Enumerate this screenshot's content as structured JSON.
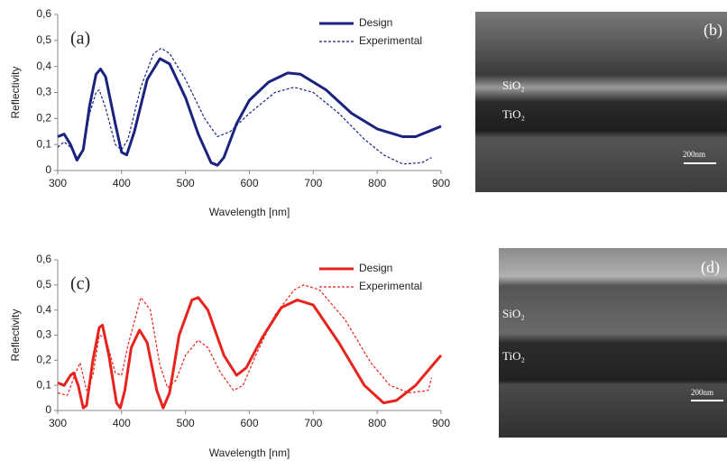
{
  "chart_data": [
    {
      "type": "line",
      "annotation": "(a)",
      "xlabel": "Wavelength [nm]",
      "ylabel": "Reflectivity",
      "xlim": [
        300,
        900
      ],
      "xticks": [
        300,
        400,
        500,
        600,
        700,
        800,
        900
      ],
      "ylim": [
        0,
        0.6
      ],
      "yticks": [
        0,
        {
          "value": 0.1,
          "label": "0,1"
        },
        {
          "value": 0.2,
          "label": "0,2"
        },
        {
          "value": 0.3,
          "label": "0,3"
        },
        {
          "value": 0.4,
          "label": "0,4"
        },
        {
          "value": 0.5,
          "label": "0,5"
        },
        {
          "value": 0.6,
          "label": "0,6"
        }
      ],
      "legend": "upper right",
      "series": [
        {
          "name": "Design",
          "color": "#1a237e",
          "dashed": false,
          "x": [
            300,
            310,
            320,
            330,
            340,
            350,
            360,
            367,
            375,
            390,
            400,
            408,
            420,
            440,
            460,
            475,
            500,
            520,
            540,
            550,
            560,
            580,
            600,
            630,
            660,
            680,
            720,
            760,
            800,
            840,
            860,
            880,
            900
          ],
          "values": [
            0.13,
            0.14,
            0.1,
            0.04,
            0.08,
            0.25,
            0.37,
            0.39,
            0.36,
            0.18,
            0.07,
            0.06,
            0.15,
            0.35,
            0.43,
            0.41,
            0.28,
            0.14,
            0.03,
            0.02,
            0.05,
            0.18,
            0.27,
            0.34,
            0.375,
            0.37,
            0.31,
            0.22,
            0.16,
            0.13,
            0.13,
            0.15,
            0.17
          ]
        },
        {
          "name": "Experimental",
          "color": "#1a237e",
          "dashed": true,
          "x": [
            300,
            310,
            320,
            330,
            340,
            350,
            360,
            365,
            375,
            390,
            400,
            410,
            430,
            450,
            462,
            475,
            500,
            530,
            550,
            570,
            600,
            640,
            670,
            700,
            740,
            780,
            810,
            840,
            870,
            885
          ],
          "values": [
            0.09,
            0.11,
            0.09,
            0.05,
            0.08,
            0.22,
            0.3,
            0.31,
            0.24,
            0.1,
            0.08,
            0.12,
            0.32,
            0.45,
            0.47,
            0.45,
            0.35,
            0.2,
            0.13,
            0.15,
            0.22,
            0.3,
            0.32,
            0.3,
            0.22,
            0.12,
            0.06,
            0.025,
            0.03,
            0.05
          ]
        }
      ]
    },
    {
      "type": "line",
      "annotation": "(c)",
      "xlabel": "Wavelength [nm]",
      "ylabel": "Reflectivity",
      "xlim": [
        300,
        900
      ],
      "xticks": [
        300,
        400,
        500,
        600,
        700,
        800,
        900
      ],
      "ylim": [
        0,
        0.6
      ],
      "yticks": [
        0,
        {
          "value": 0.1,
          "label": "0,1"
        },
        {
          "value": 0.2,
          "label": "0,2"
        },
        {
          "value": 0.3,
          "label": "0,3"
        },
        {
          "value": 0.4,
          "label": "0,4"
        },
        {
          "value": 0.5,
          "label": "0,5"
        },
        {
          "value": 0.6,
          "label": "0,6"
        }
      ],
      "legend": "upper right",
      "series": [
        {
          "name": "Design",
          "color": "#e8231d",
          "dashed": false,
          "x": [
            300,
            310,
            320,
            325,
            332,
            340,
            345,
            355,
            365,
            370,
            380,
            392,
            398,
            405,
            415,
            428,
            440,
            455,
            465,
            475,
            490,
            510,
            520,
            535,
            560,
            580,
            595,
            620,
            650,
            675,
            700,
            740,
            780,
            810,
            830,
            860,
            890,
            900
          ],
          "values": [
            0.11,
            0.1,
            0.14,
            0.15,
            0.1,
            0.01,
            0.02,
            0.2,
            0.33,
            0.34,
            0.22,
            0.03,
            0.01,
            0.08,
            0.25,
            0.32,
            0.27,
            0.08,
            0.01,
            0.07,
            0.3,
            0.44,
            0.45,
            0.4,
            0.22,
            0.14,
            0.17,
            0.29,
            0.41,
            0.44,
            0.42,
            0.27,
            0.1,
            0.03,
            0.04,
            0.1,
            0.19,
            0.22
          ]
        },
        {
          "name": "Experimental",
          "color": "#e8231d",
          "dashed": true,
          "x": [
            300,
            315,
            328,
            335,
            345,
            355,
            365,
            375,
            390,
            400,
            410,
            430,
            445,
            460,
            472,
            485,
            500,
            520,
            535,
            555,
            575,
            590,
            610,
            640,
            670,
            685,
            710,
            750,
            790,
            820,
            850,
            880,
            885
          ],
          "values": [
            0.07,
            0.06,
            0.15,
            0.19,
            0.08,
            0.14,
            0.3,
            0.29,
            0.15,
            0.14,
            0.26,
            0.45,
            0.4,
            0.18,
            0.09,
            0.12,
            0.22,
            0.28,
            0.25,
            0.15,
            0.08,
            0.1,
            0.22,
            0.38,
            0.48,
            0.5,
            0.48,
            0.36,
            0.19,
            0.1,
            0.07,
            0.08,
            0.13
          ]
        }
      ]
    }
  ],
  "images": [
    {
      "label": "(b)",
      "top_layer": "SiO₂",
      "bottom_layer": "TiO₂",
      "scale": "200nm"
    },
    {
      "label": "(d)",
      "top_layer": "SiO₂",
      "bottom_layer": "TiO₂",
      "scale": "200nm"
    }
  ]
}
